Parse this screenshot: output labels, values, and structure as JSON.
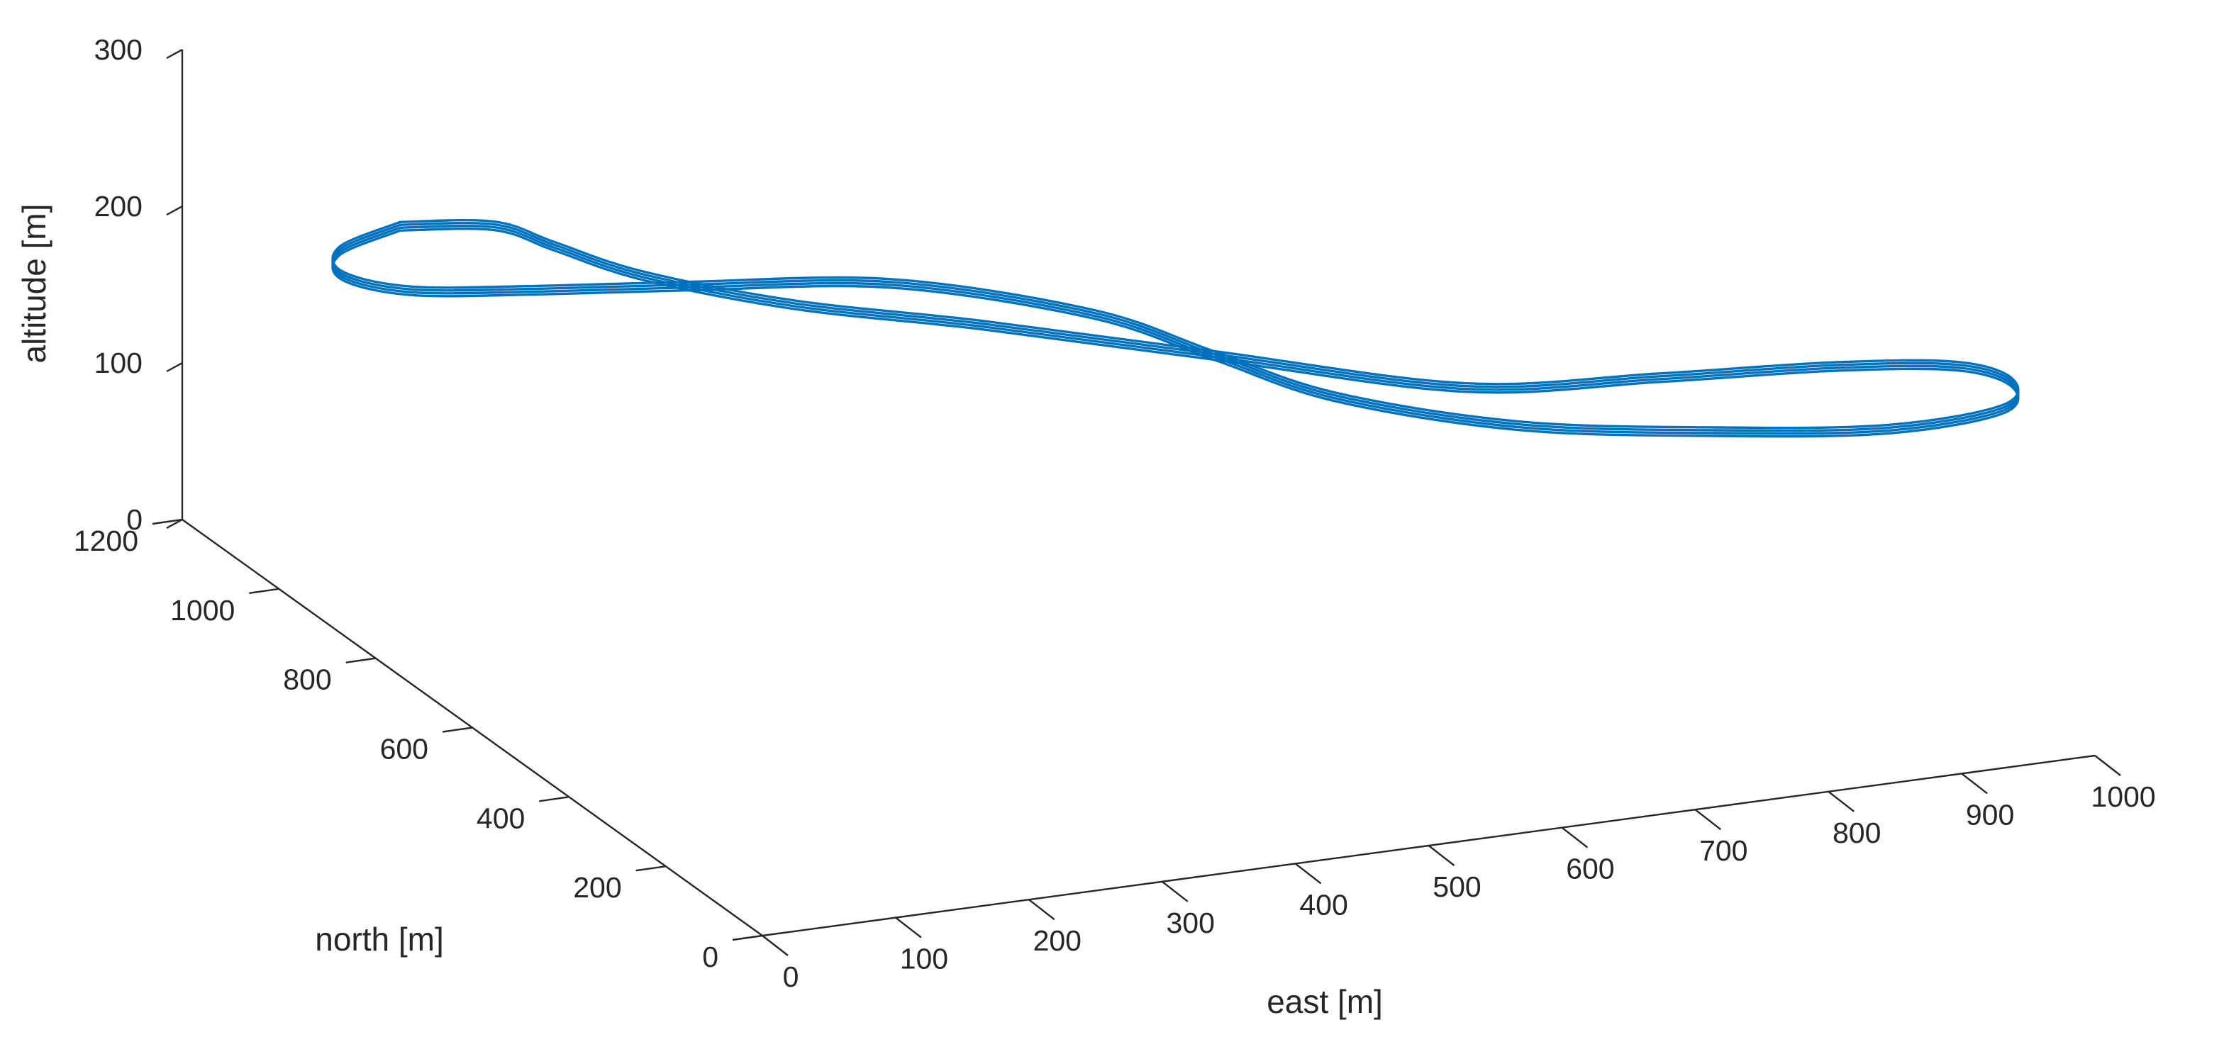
{
  "chart_data": {
    "type": "line3d",
    "title": "",
    "xlabel": "east [m]",
    "ylabel": "north [m]",
    "zlabel": "altitude [m]",
    "xlim": [
      0,
      1000
    ],
    "ylim": [
      0,
      1200
    ],
    "zlim": [
      0,
      300
    ],
    "x_ticks": [
      "0",
      "100",
      "200",
      "300",
      "400",
      "500",
      "600",
      "700",
      "800",
      "900",
      "1000"
    ],
    "y_ticks": [
      "0",
      "200",
      "400",
      "600",
      "800",
      "1000",
      "1200"
    ],
    "z_ticks": [
      "0",
      "100",
      "200",
      "300"
    ],
    "grid": false,
    "line_color": "#0072BD",
    "series": [
      {
        "shape": "figure-eight flight path flown several times at constant altitude",
        "altitude": 200,
        "points": [
          [
            120,
            1080
          ],
          [
            60,
            1040
          ],
          [
            40,
            980
          ],
          [
            70,
            920
          ],
          [
            150,
            880
          ],
          [
            250,
            840
          ],
          [
            380,
            780
          ],
          [
            480,
            640
          ],
          [
            520,
            500
          ],
          [
            560,
            360
          ],
          [
            650,
            230
          ],
          [
            770,
            150
          ],
          [
            880,
            100
          ],
          [
            970,
            110
          ],
          [
            1000,
            170
          ],
          [
            980,
            230
          ],
          [
            900,
            270
          ],
          [
            780,
            300
          ],
          [
            650,
            340
          ],
          [
            520,
            500
          ],
          [
            400,
            650
          ],
          [
            300,
            760
          ],
          [
            230,
            880
          ],
          [
            200,
            980
          ],
          [
            180,
            1050
          ],
          [
            120,
            1080
          ]
        ],
        "laps": 4
      }
    ]
  }
}
